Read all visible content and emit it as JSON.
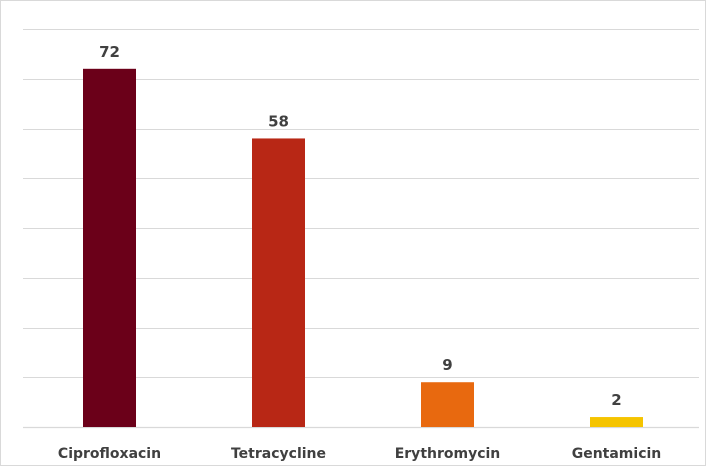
{
  "chart_data": {
    "type": "bar",
    "categories": [
      "Ciprofloxacin",
      "Tetracycline",
      "Erythromycin",
      "Gentamicin"
    ],
    "values": [
      72,
      58,
      9,
      2
    ],
    "data_labels": [
      "72",
      "58",
      "9",
      "2"
    ],
    "bar_colors": [
      "#6b0019",
      "#b82715",
      "#e8690f",
      "#f5c400"
    ],
    "grid_color": "#d9d9d9",
    "label_color": "#404040",
    "title": "",
    "xlabel": "",
    "ylabel": "",
    "ylim": [
      0,
      80
    ],
    "gridlines": true,
    "y_tick_labels_shown": false,
    "legend": "none"
  }
}
